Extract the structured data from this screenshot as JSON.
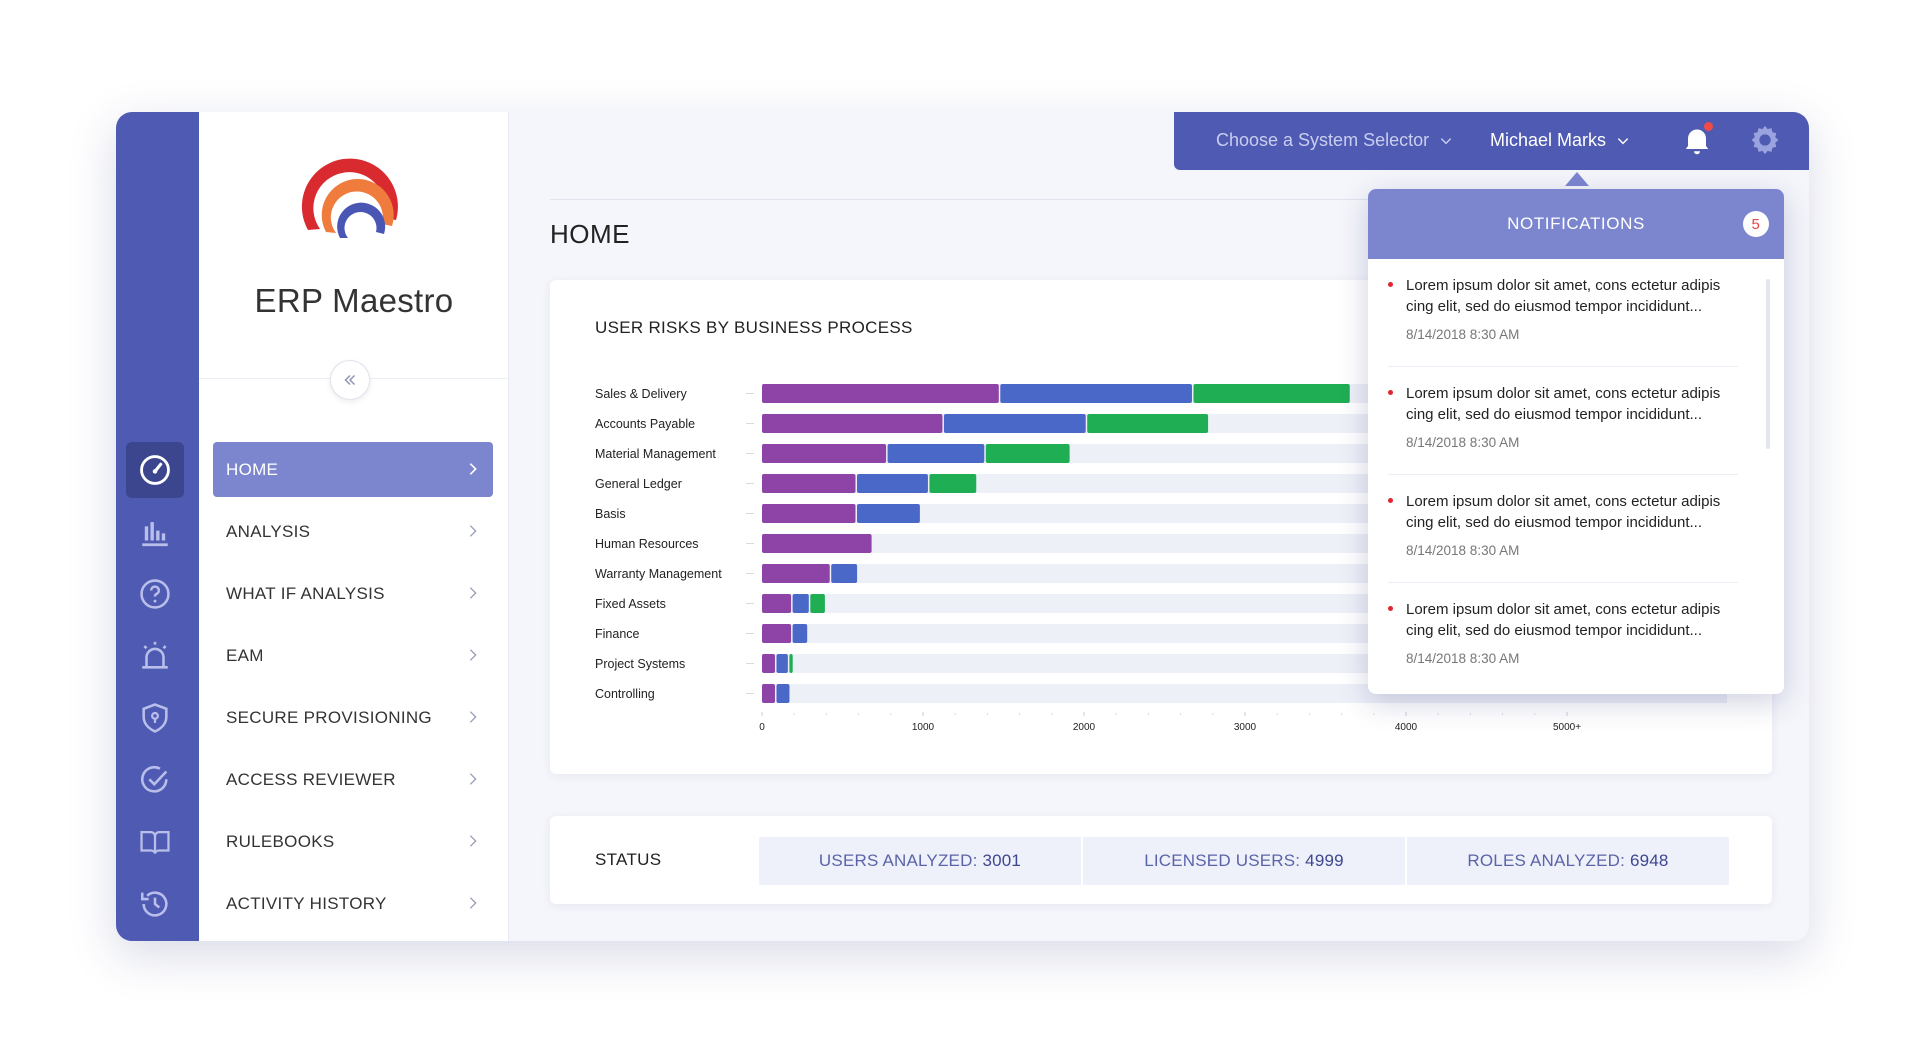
{
  "brand": {
    "name": "ERP Maestro"
  },
  "header": {
    "system_selector": "Choose a System Selector",
    "user_name": "Michael Marks"
  },
  "page": {
    "title": "HOME"
  },
  "sidebar": {
    "items": [
      {
        "label": "HOME",
        "icon": "dashboard-icon"
      },
      {
        "label": "ANALYSIS",
        "icon": "bar-chart-icon"
      },
      {
        "label": "WHAT IF ANALYSIS",
        "icon": "help-circle-icon"
      },
      {
        "label": "EAM",
        "icon": "alarm-icon"
      },
      {
        "label": "SECURE PROVISIONING",
        "icon": "shield-icon"
      },
      {
        "label": "ACCESS REVIEWER",
        "icon": "check-circle-icon"
      },
      {
        "label": "RULEBOOKS",
        "icon": "book-icon"
      },
      {
        "label": "ACTIVITY HISTORY",
        "icon": "history-icon"
      }
    ]
  },
  "colors": {
    "accent": "#4f5bb2",
    "active": "#7c86cf",
    "purple": "#8d44a6",
    "blue": "#4a68c7",
    "green": "#1fae54"
  },
  "chart_data": {
    "type": "bar",
    "orientation": "horizontal",
    "stacked": true,
    "title": "USER RISKS BY BUSINESS PROCESS",
    "categories": [
      "Sales & Delivery",
      "Accounts Payable",
      "Material Management",
      "General Ledger",
      "Basis",
      "Human Resources",
      "Warranty Management",
      "Fixed Assets",
      "Finance",
      "Project Systems",
      "Controlling"
    ],
    "series": [
      {
        "values": [
          1480,
          1130,
          780,
          590,
          590,
          690,
          430,
          190,
          190,
          90,
          90
        ]
      },
      {
        "values": [
          1200,
          890,
          610,
          450,
          400,
          0,
          170,
          110,
          100,
          80,
          90
        ]
      },
      {
        "values": [
          980,
          760,
          530,
          300,
          0,
          0,
          0,
          100,
          0,
          30,
          0
        ]
      }
    ],
    "xticks": [
      "0",
      "1000",
      "2000",
      "3000",
      "4000",
      "5000+"
    ],
    "xlim": [
      0,
      5000
    ]
  },
  "status": {
    "label": "STATUS",
    "users_analyzed": {
      "label": "USERS ANALYZED:",
      "value": "3001"
    },
    "licensed_users": {
      "label": "LICENSED USERS:",
      "value": "4999"
    },
    "roles_analyzed": {
      "label": "ROLES ANALYZED:",
      "value": "6948"
    }
  },
  "notifications": {
    "title": "NOTIFICATIONS",
    "count": "5",
    "items": [
      {
        "text": "Lorem ipsum dolor sit amet, cons ectetur adipis cing elit, sed do eiusmod tempor incididunt...",
        "time": "8/14/2018  8:30 AM"
      },
      {
        "text": "Lorem ipsum dolor sit amet, cons ectetur adipis cing elit, sed do eiusmod tempor incididunt...",
        "time": "8/14/2018  8:30 AM"
      },
      {
        "text": "Lorem ipsum dolor sit amet, cons ectetur adipis cing elit, sed do eiusmod tempor incididunt...",
        "time": "8/14/2018  8:30 AM"
      },
      {
        "text": "Lorem ipsum dolor sit amet, cons ectetur adipis cing elit, sed do eiusmod tempor incididunt...",
        "time": "8/14/2018  8:30 AM"
      }
    ]
  }
}
